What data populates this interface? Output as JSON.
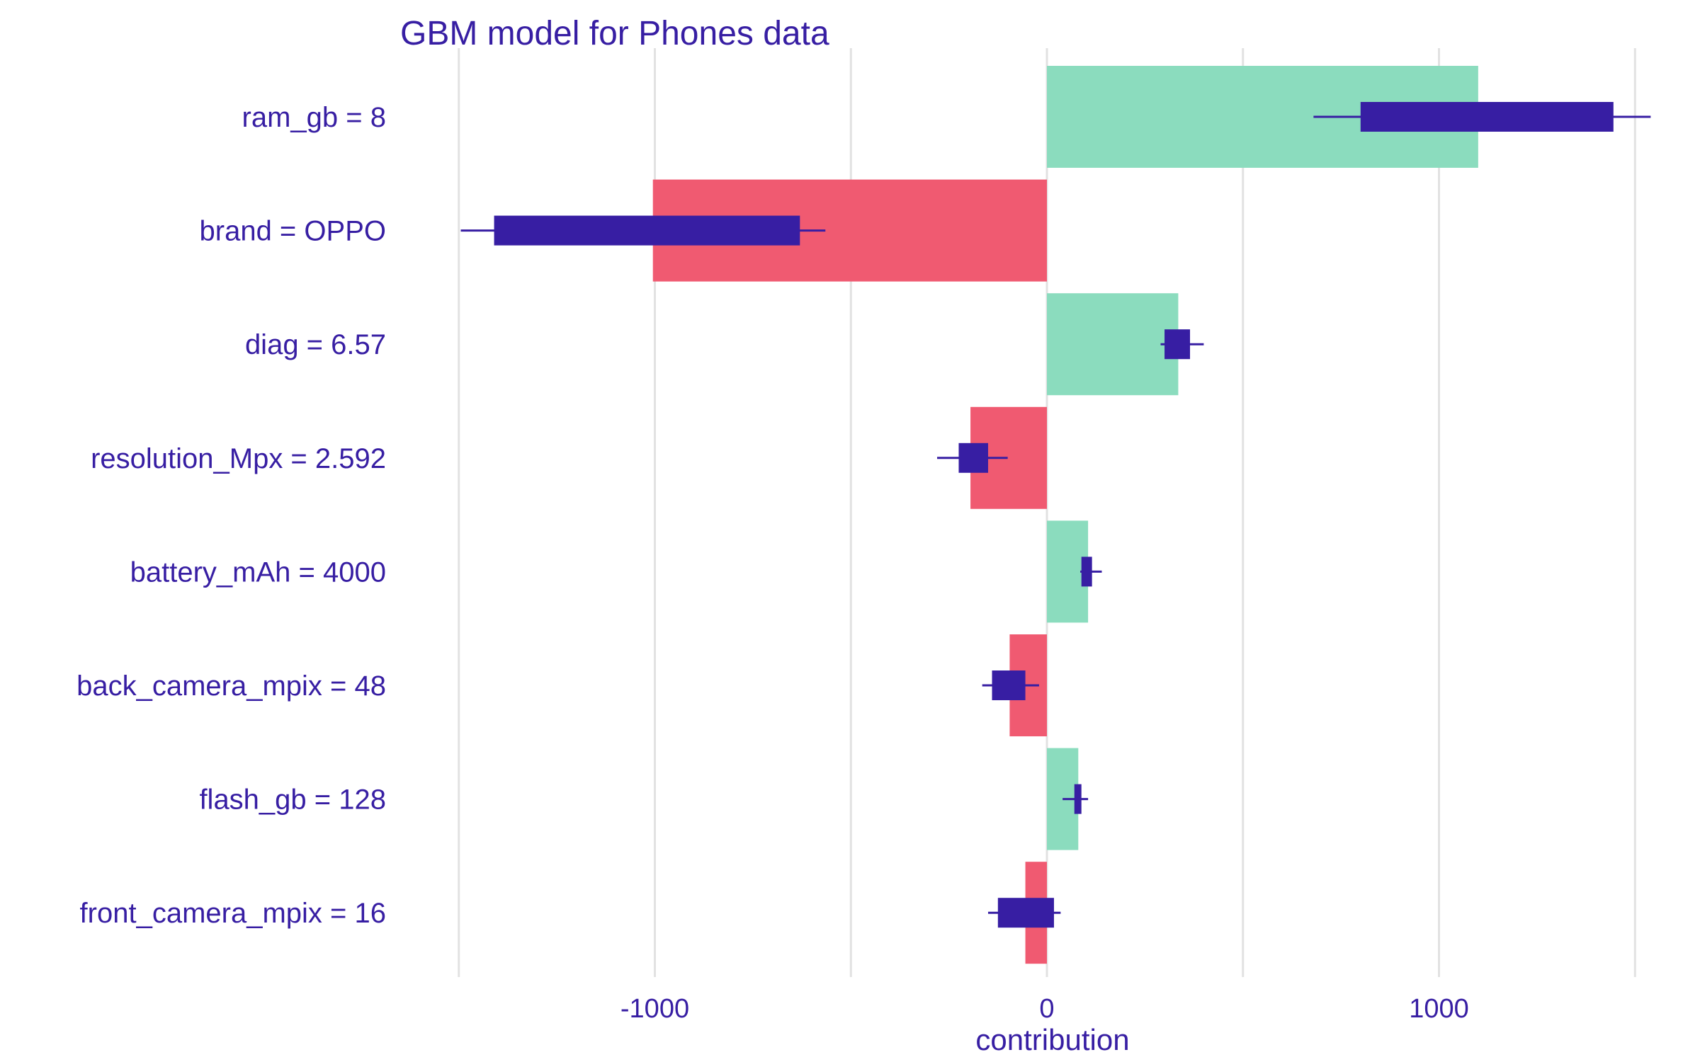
{
  "colors": {
    "positive": "#8bdcbe",
    "negative": "#f05a71",
    "boxplot": "#371ea3",
    "text": "#371ea3",
    "grid": "#e2e2e2",
    "background": "#ffffff"
  },
  "chart_data": {
    "type": "bar",
    "orientation": "horizontal",
    "title": "GBM model for Phones data",
    "xlabel": "contribution",
    "ylabel": "",
    "xlim": [
      -1500,
      1500
    ],
    "xticks": [
      -1000,
      0,
      1000
    ],
    "xtick_labels": [
      "-1000",
      "0",
      "1000"
    ],
    "grid_lines": [
      -1500,
      -1000,
      -500,
      0,
      500,
      1000,
      1500
    ],
    "grid": true,
    "legend": "none",
    "categories": [
      "ram_gb = 8",
      "brand = OPPO",
      "diag = 6.57",
      "resolution_Mpx = 2.592",
      "battery_mAh = 4000",
      "back_camera_mpix = 48",
      "flash_gb = 128",
      "front_camera_mpix = 16"
    ],
    "values": [
      1100,
      -1005,
      335,
      -195,
      105,
      -95,
      80,
      -55
    ],
    "boxplots": [
      {
        "whisker_low": 680,
        "q1": 800,
        "q3": 1445,
        "whisker_high": 1540
      },
      {
        "whisker_low": -1495,
        "q1": -1410,
        "q3": -630,
        "whisker_high": -565
      },
      {
        "whisker_low": 290,
        "q1": 300,
        "q3": 365,
        "whisker_high": 400
      },
      {
        "whisker_low": -280,
        "q1": -225,
        "q3": -150,
        "whisker_high": -100
      },
      {
        "whisker_low": 85,
        "q1": 88,
        "q3": 115,
        "whisker_high": 140
      },
      {
        "whisker_low": -165,
        "q1": -140,
        "q3": -55,
        "whisker_high": -20
      },
      {
        "whisker_low": 40,
        "q1": 70,
        "q3": 88,
        "whisker_high": 105
      },
      {
        "whisker_low": -150,
        "q1": -125,
        "q3": 18,
        "whisker_high": 35
      }
    ]
  }
}
